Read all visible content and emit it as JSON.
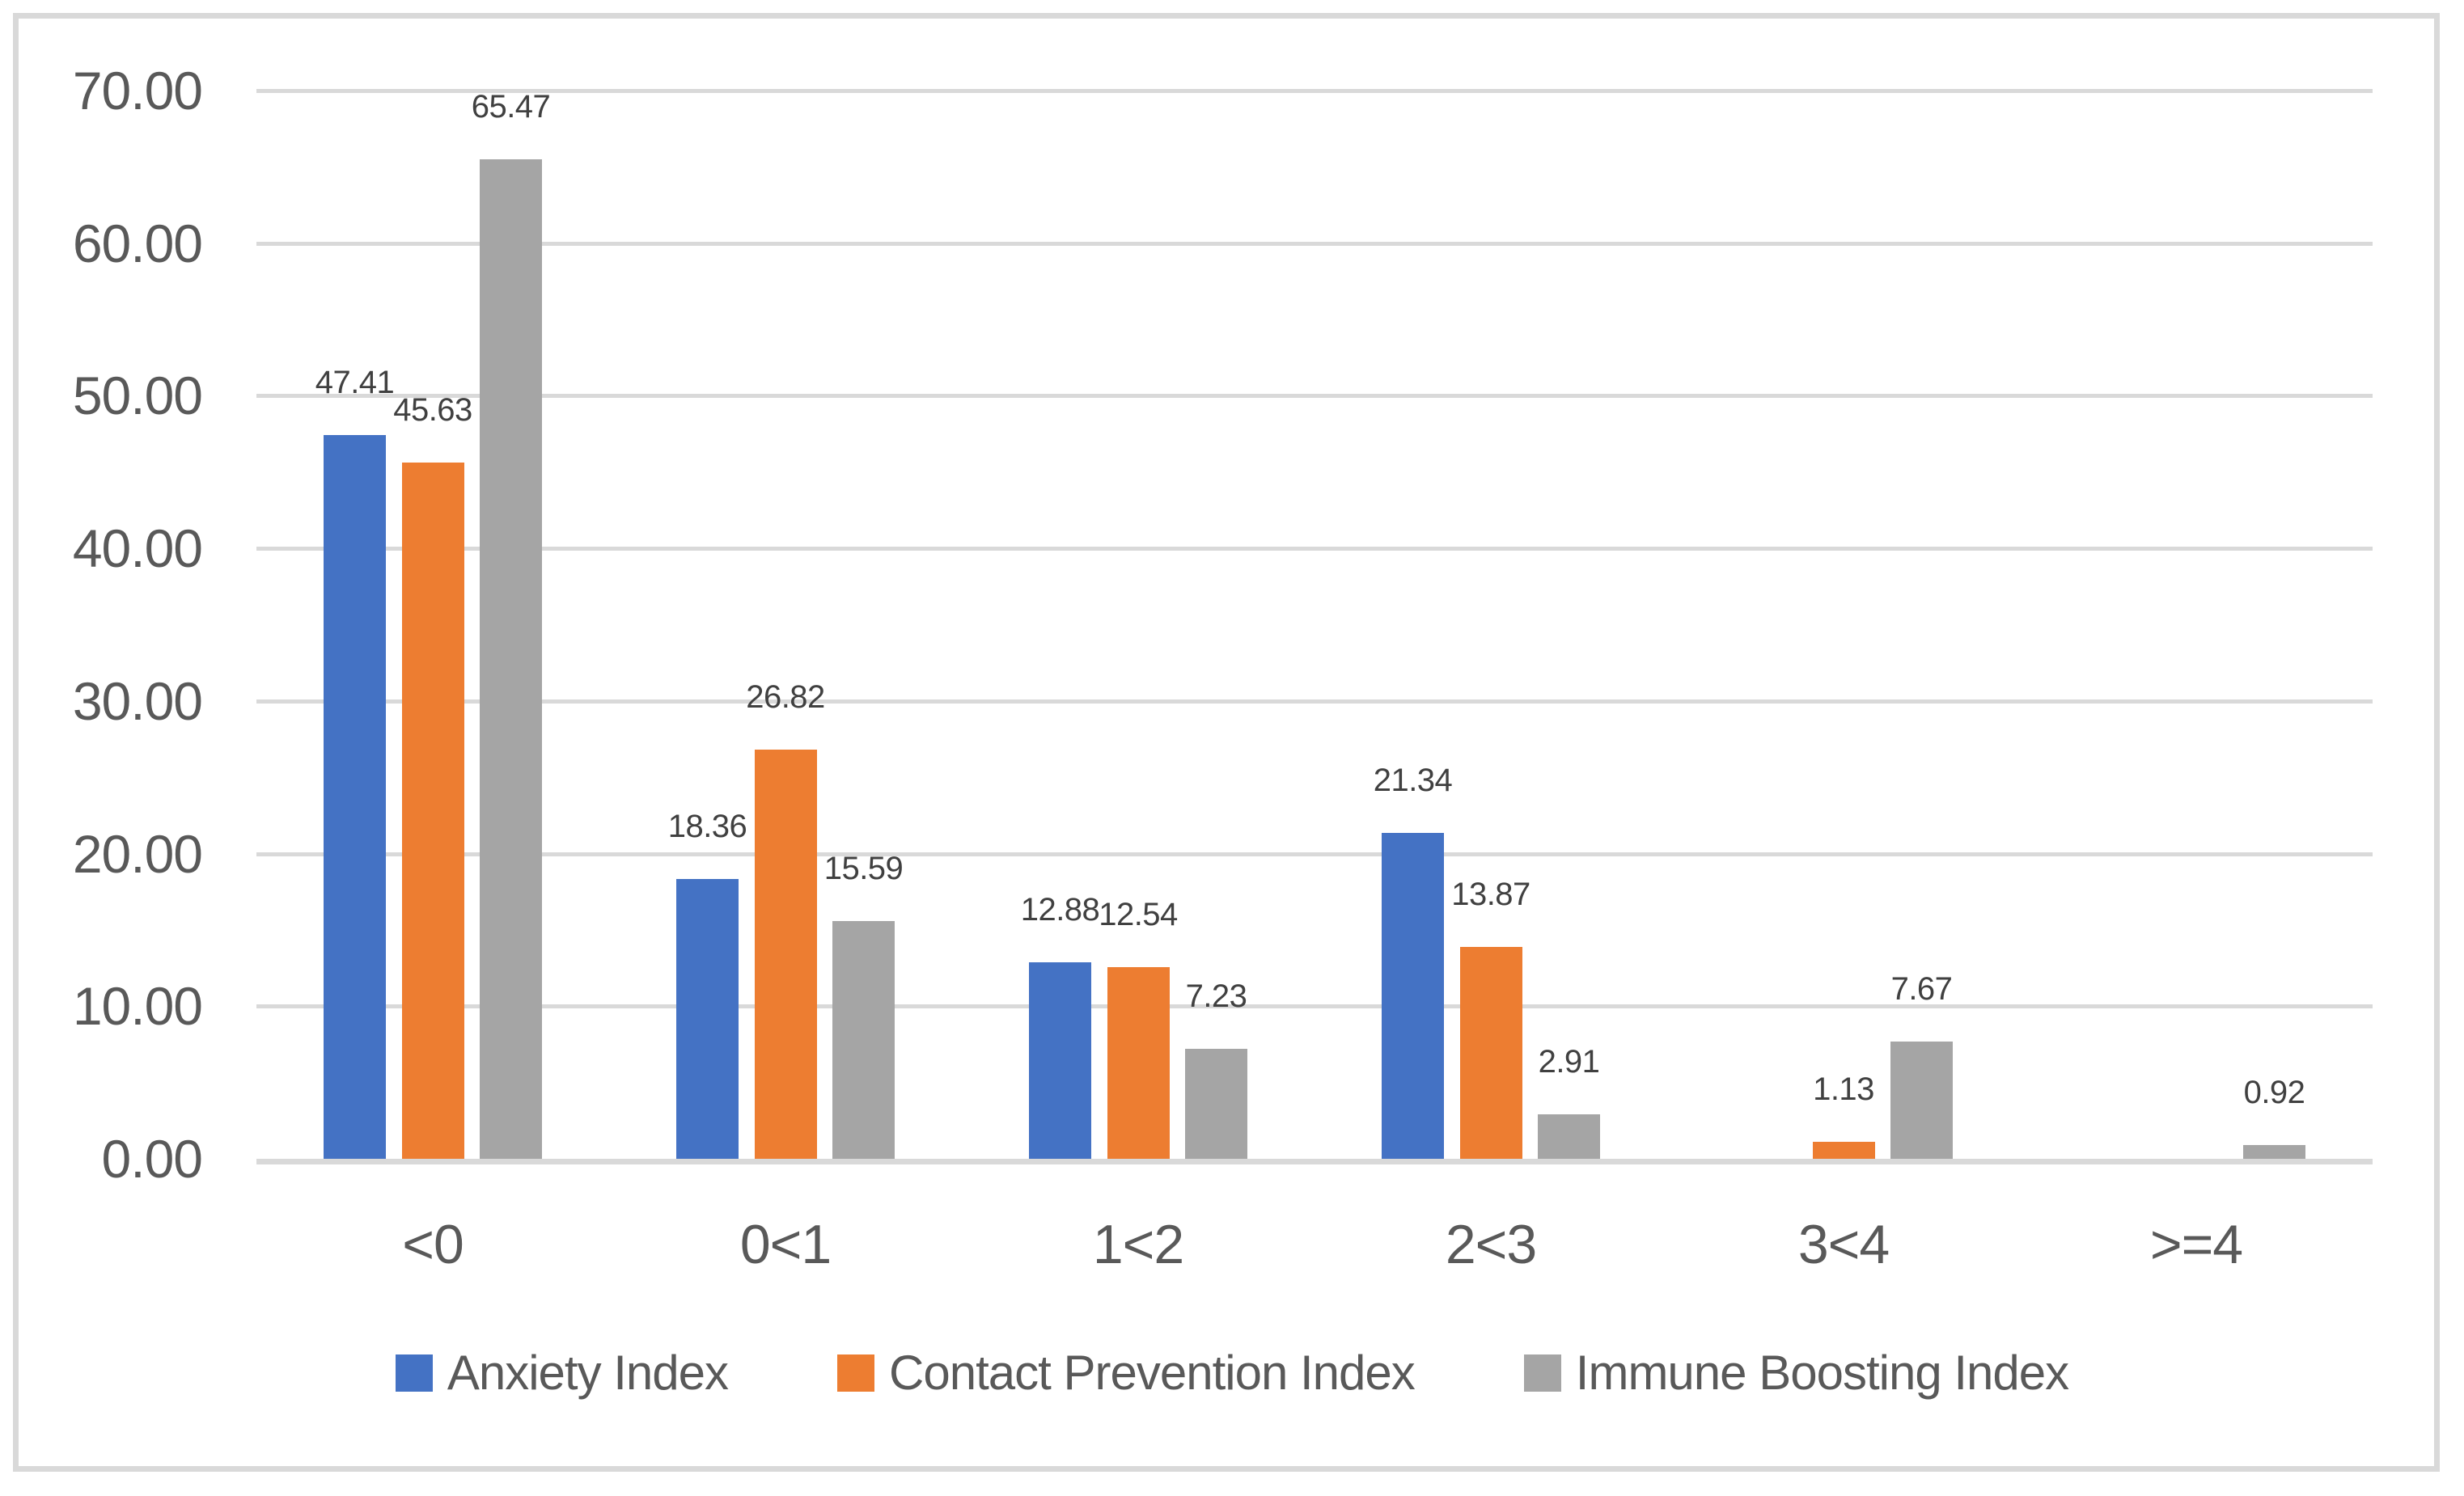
{
  "chart_data": {
    "type": "bar",
    "title": "",
    "xlabel": "",
    "ylabel": "",
    "categories": [
      "<0",
      "0<1",
      "1<2",
      "2<3",
      "3<4",
      ">=4"
    ],
    "series": [
      {
        "name": "Anxiety Index",
        "color": "#4472C4",
        "values": [
          47.41,
          18.36,
          12.88,
          21.34,
          null,
          null
        ]
      },
      {
        "name": "Contact Prevention Index",
        "color": "#ED7D31",
        "values": [
          45.63,
          26.82,
          12.54,
          13.87,
          1.13,
          null
        ]
      },
      {
        "name": "Immune Boosting Index",
        "color": "#A5A5A5",
        "values": [
          65.47,
          15.59,
          7.23,
          2.91,
          7.67,
          0.92
        ]
      }
    ],
    "data_labels": [
      "47.41",
      "45.63",
      "65.47",
      "18.36",
      "26.82",
      "15.59",
      "12.88",
      "12.54",
      "7.23",
      "21.34",
      "13.87",
      "2.91",
      "1.13",
      "7.67",
      "0.92"
    ],
    "ylim": [
      0,
      70
    ],
    "ytick_step": 10,
    "yticks": [
      "70.00",
      "60.00",
      "50.00",
      "40.00",
      "30.00",
      "20.00",
      "10.00",
      "0.00"
    ],
    "grid": true,
    "legend_position": "bottom",
    "colors": {
      "gridline": "#D9D9D9",
      "axis_text": "#595959",
      "data_label_text": "#404040",
      "frame_border": "#D9D9D9",
      "background": "#FFFFFF"
    }
  }
}
